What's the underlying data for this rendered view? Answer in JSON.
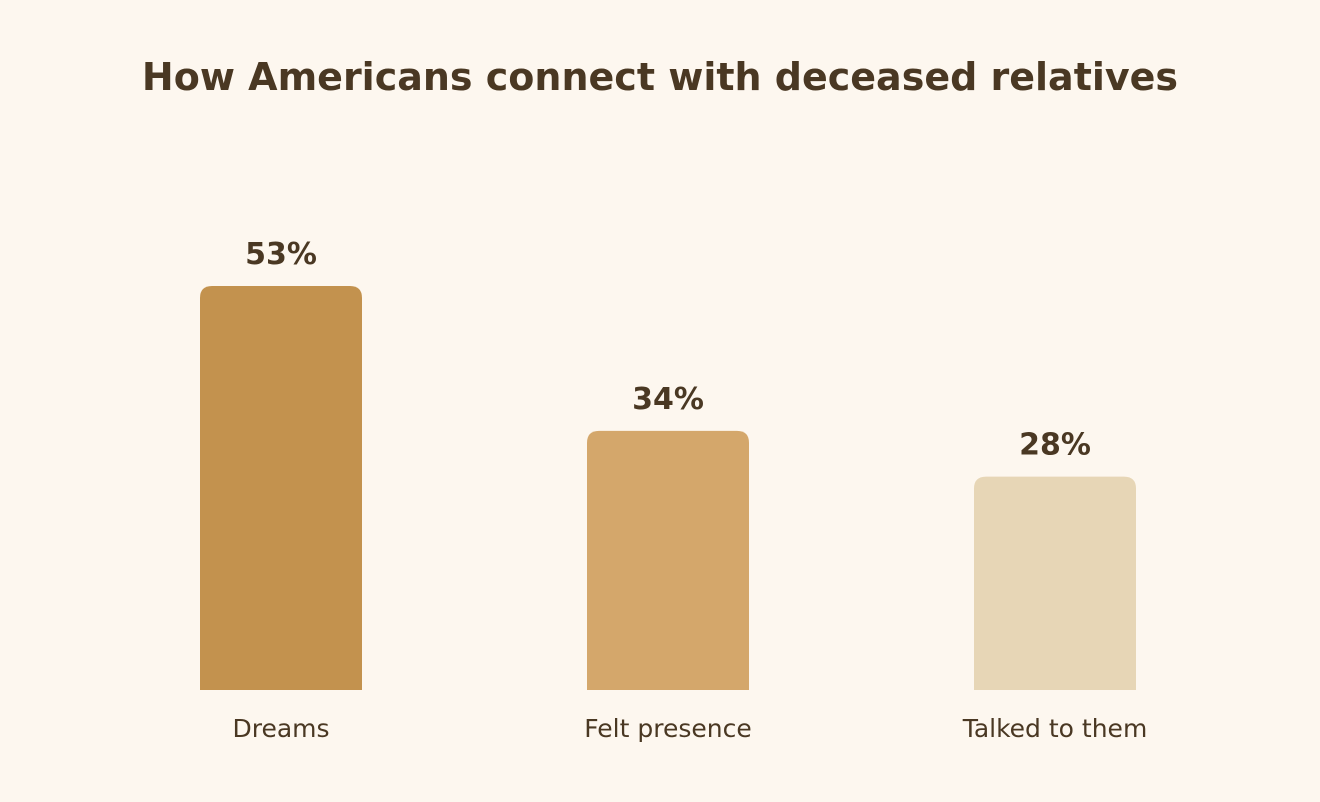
{
  "chart_data": {
    "type": "bar",
    "title": "How Americans connect with deceased relatives",
    "categories": [
      "Dreams",
      "Felt presence",
      "Talked to them"
    ],
    "values": [
      53,
      34,
      28
    ],
    "value_labels": [
      "53%",
      "34%",
      "28%"
    ],
    "unit": "%",
    "bar_colors": [
      "#c3924e",
      "#d4a76b",
      "#e7d6b6"
    ],
    "background_color": "#fdf7ef",
    "text_color": "#4a3823",
    "ylim": [
      0,
      53
    ],
    "grid": false,
    "legend": "none",
    "axes_visible": false
  }
}
